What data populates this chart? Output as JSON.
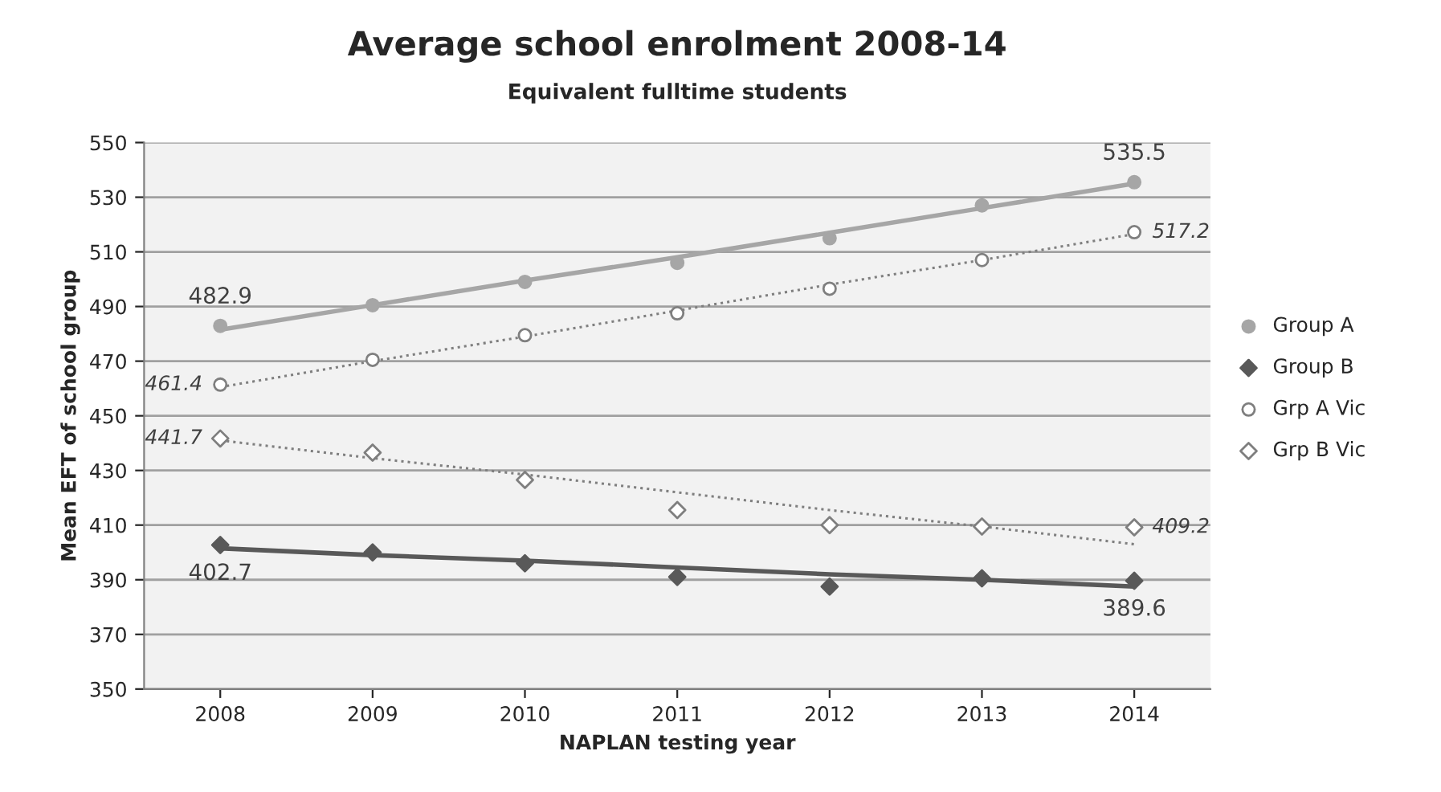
{
  "chart_data": {
    "type": "scatter",
    "title": "Average school enrolment 2008-14",
    "subtitle": "Equivalent fulltime students",
    "xlabel": "NAPLAN testing year",
    "ylabel": "Mean EFT of school group",
    "x": [
      2008,
      2009,
      2010,
      2011,
      2012,
      2013,
      2014
    ],
    "xlim": [
      2007.5,
      2014.5
    ],
    "xticks": [
      2008,
      2009,
      2010,
      2011,
      2012,
      2013,
      2014
    ],
    "ylim": [
      350,
      550
    ],
    "yticks": [
      350,
      370,
      390,
      410,
      430,
      450,
      470,
      490,
      510,
      530,
      550
    ],
    "grid": "y",
    "legend": "right",
    "series": [
      {
        "name": "Group A",
        "marker": "circle",
        "color": "#a6a6a6",
        "values": [
          482.9,
          490.5,
          499,
          506,
          515,
          527,
          535.5
        ],
        "value_labels": [
          "482.9",
          null,
          null,
          null,
          null,
          null,
          "535.5"
        ]
      },
      {
        "name": "Group B",
        "marker": "diamond",
        "color": "#595959",
        "values": [
          402.7,
          400,
          396,
          391,
          387.5,
          390.5,
          389.6
        ],
        "value_labels": [
          "402.7",
          null,
          null,
          null,
          null,
          null,
          "389.6"
        ]
      },
      {
        "name": "Grp A Vic",
        "marker": "circle",
        "line_style": "dotted",
        "color": "#7f7f7f",
        "values": [
          461.4,
          470.5,
          479.5,
          487.5,
          496.5,
          507,
          517.2
        ],
        "value_labels": [
          "461.4",
          null,
          null,
          null,
          null,
          null,
          "517.2"
        ]
      },
      {
        "name": "Grp B Vic",
        "marker": "diamond",
        "line_style": "dotted",
        "color": "#7f7f7f",
        "values": [
          441.7,
          436.5,
          426.5,
          415.5,
          410,
          409.5,
          409.2
        ],
        "value_labels": [
          "441.7",
          null,
          null,
          null,
          null,
          null,
          "409.2"
        ]
      },
      {
        "type": "line",
        "line_style": "solid",
        "color": "#a6a6a6",
        "values": [
          481.5,
          490.5,
          499.5,
          508,
          517,
          526,
          535
        ]
      },
      {
        "type": "line",
        "line_style": "solid",
        "color": "#595959",
        "values": [
          401.5,
          399,
          397,
          394.5,
          392,
          390,
          387.5
        ]
      },
      {
        "type": "line",
        "line_style": "dotted",
        "color": "#7f7f7f",
        "values": [
          460.5,
          470,
          479,
          488.5,
          498,
          507,
          516.5
        ]
      },
      {
        "type": "line",
        "line_style": "dotted",
        "color": "#7f7f7f",
        "values": [
          441,
          434.5,
          428.5,
          422,
          415.5,
          409.5,
          403
        ]
      }
    ]
  }
}
